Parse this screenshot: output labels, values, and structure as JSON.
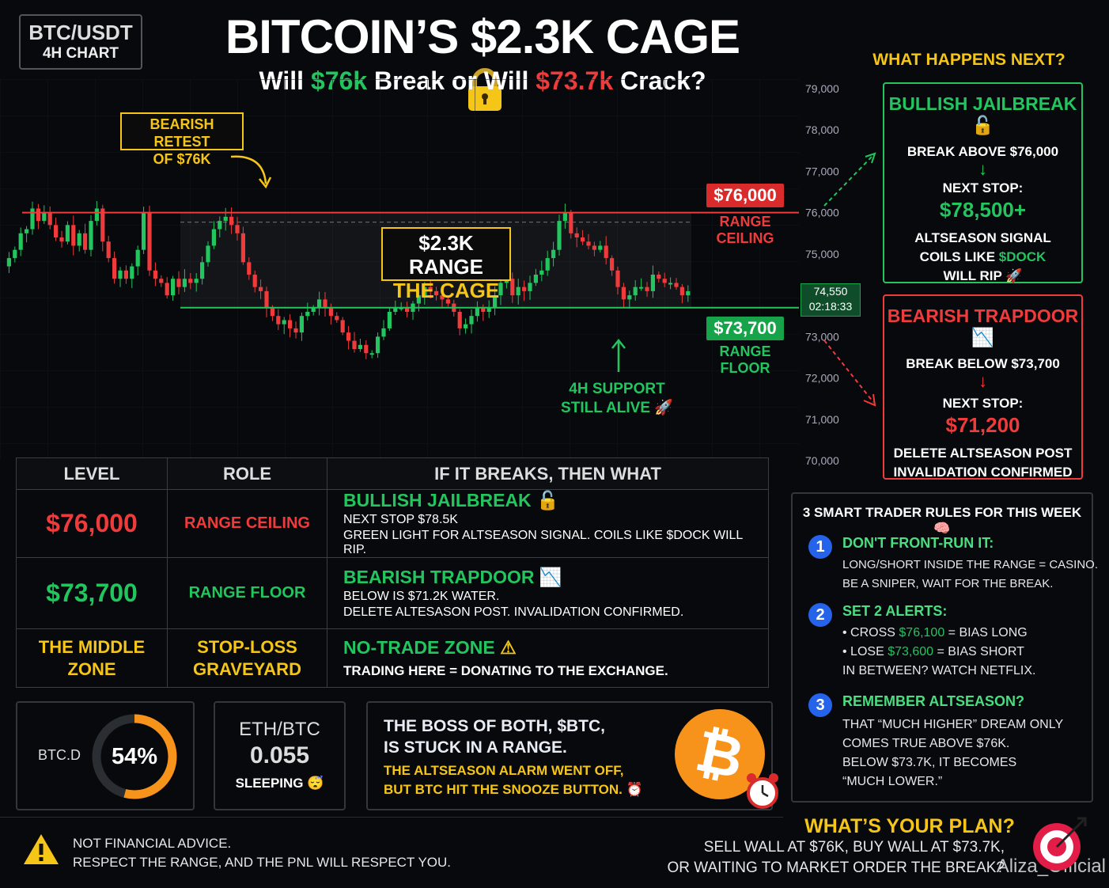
{
  "header": {
    "pair": "BTC/USDT",
    "timeframe": "4H CHART",
    "title": "BITCOIN’S $2.3K CAGE",
    "subtitle_a": "Will ",
    "subtitle_b": "$76k",
    "subtitle_c": " Break or Will ",
    "subtitle_d": "$73.7k",
    "subtitle_e": " Crack?"
  },
  "chart_data": {
    "type": "candlestick",
    "yaxis_ticks": [
      "79,000",
      "78,000",
      "77,000",
      "76,000",
      "75,000",
      "74,000",
      "73,000",
      "72,000",
      "71,000",
      "70,000"
    ],
    "ylim": [
      70000,
      79000
    ],
    "current_price": "74,550",
    "countdown": "02:18:33",
    "ceiling": {
      "value": 76000,
      "label": "$76,000",
      "sub": "RANGE CEILING"
    },
    "floor": {
      "value": 73700,
      "label": "$73,700",
      "sub": "RANGE FLOOR"
    },
    "range_label_1": "$2.3K RANGE",
    "range_label_2": "THE CAGE",
    "callout_1": "BEARISH RETEST",
    "callout_2": "OF $76K",
    "support_1": "4H SUPPORT",
    "support_2": "STILL ALIVE",
    "closes": [
      74700,
      74900,
      75100,
      75500,
      75600,
      76100,
      75800,
      76000,
      75700,
      75400,
      75300,
      75700,
      75200,
      75500,
      75100,
      75800,
      76100,
      75300,
      74900,
      74400,
      74600,
      74400,
      74700,
      75100,
      76000,
      74600,
      74400,
      74300,
      74000,
      74400,
      74200,
      74400,
      74300,
      74400,
      74800,
      75200,
      75600,
      75800,
      75900,
      75700,
      75500,
      74800,
      74500,
      74200,
      74100,
      73700,
      73500,
      73300,
      73400,
      73200,
      73100,
      73500,
      73600,
      73700,
      73900,
      73700,
      73500,
      73400,
      73100,
      72900,
      72700,
      72800,
      72600,
      72600,
      73000,
      73200,
      73600,
      73700,
      73700,
      73600,
      73800,
      74000,
      74200,
      74100,
      74000,
      73900,
      73800,
      73600,
      73200,
      73300,
      73500,
      73700,
      73600,
      73700,
      74000,
      74300,
      74400,
      74000,
      74200,
      74100,
      74300,
      74500,
      74600,
      74900,
      75100,
      75800,
      76000,
      75500,
      75400,
      75300,
      75200,
      75100,
      75200,
      74900,
      74600,
      74200,
      73900,
      74000,
      74200,
      74200,
      74100,
      74500,
      74400,
      74300,
      74300,
      74200,
      74000,
      74100
    ]
  },
  "next": {
    "heading": "WHAT HAPPENS NEXT?",
    "bull": {
      "title": "BULLISH JAILBREAK",
      "l1": "BREAK ABOVE $76,000",
      "l2": "NEXT STOP:",
      "l3": "$78,500+",
      "l4": "ALTSEASON SIGNAL",
      "l5a": "COILS LIKE ",
      "l5b": "$DOCK",
      "l6": "WILL RIP"
    },
    "bear": {
      "title": "BEARISH TRAPDOOR",
      "l1": "BREAK BELOW $73,700",
      "l2": "NEXT STOP:",
      "l3": "$71,200",
      "l4": "DELETE ALTSEASON POST",
      "l5": "INVALIDATION CONFIRMED"
    }
  },
  "table": {
    "headers": [
      "LEVEL",
      "ROLE",
      "IF IT BREAKS, THEN WHAT"
    ],
    "rows": [
      {
        "level": "$76,000",
        "role": "RANGE CEILING",
        "title": "BULLISH JAILBREAK",
        "d1": "NEXT STOP $78.5K",
        "d2": "GREEN LIGHT FOR ALTSEASON SIGNAL. COILS LIKE $DOCK WILL RIP."
      },
      {
        "level": "$73,700",
        "role": "RANGE FLOOR",
        "title": "BEARISH TRAPDOOR",
        "d1": "BELOW IS $71.2K WATER.",
        "d2": "DELETE ALTESASON POST. INVALIDATION CONFIRMED."
      },
      {
        "level_a": "THE MIDDLE",
        "level_b": "ZONE",
        "role_a": "STOP-LOSS",
        "role_b": "GRAVEYARD",
        "title": "NO-TRADE ZONE",
        "d1": "TRADING HERE = DONATING TO THE EXCHANGE."
      }
    ]
  },
  "stats": {
    "btcd_label": "BTC.D",
    "btcd_value": "54%",
    "btcd_fraction": 0.54,
    "ethbtc_label": "ETH/BTC",
    "ethbtc_value": "0.055",
    "ethbtc_status": "SLEEPING"
  },
  "boss": {
    "l1": "THE BOSS OF BOTH, $BTC,",
    "l2": "IS STUCK IN A RANGE.",
    "l3": "THE ALTSEASON ALARM WENT OFF,",
    "l4": "BUT BTC HIT THE SNOOZE BUTTON."
  },
  "rules": {
    "heading": "3 SMART TRADER RULES FOR THIS WEEK",
    "r1": {
      "n": "1",
      "title": "DON'T FRONT-RUN IT:",
      "l1": "LONG/SHORT INSIDE THE RANGE = CASINO.",
      "l2": "BE A SNIPER, WAIT FOR THE BREAK."
    },
    "r2": {
      "n": "2",
      "title": "SET 2 ALERTS:",
      "b1a": "CROSS ",
      "b1b": "$76,100",
      "b1c": " = BIAS LONG",
      "b2a": "LOSE ",
      "b2b": "$73,600",
      "b2c": " = BIAS SHORT",
      "l3": "IN BETWEEN? WATCH NETFLIX."
    },
    "r3": {
      "n": "3",
      "title": "REMEMBER ALTSEASON?",
      "l1": "THAT “MUCH HIGHER” DREAM ONLY",
      "l2": "COMES TRUE ABOVE $76K.",
      "l3": "BELOW $73.7K, IT BECOMES",
      "l4": "“MUCH LOWER.”"
    }
  },
  "footer": {
    "d1": "NOT FINANCIAL ADVICE.",
    "d2": "RESPECT THE RANGE, AND THE PNL WILL RESPECT YOU.",
    "plan": "WHAT’S YOUR PLAN?",
    "p1": "SELL WALL AT $76K, BUY WALL AT $73.7K,",
    "p2": "OR WAITING TO MARKET ORDER THE BREAK?",
    "watermark": "Aliza_Official"
  },
  "colors": {
    "green": "#22c55e",
    "red": "#ef3b3b",
    "yellow": "#f5c518",
    "orange": "#f7931a",
    "bg": "#07090c"
  }
}
